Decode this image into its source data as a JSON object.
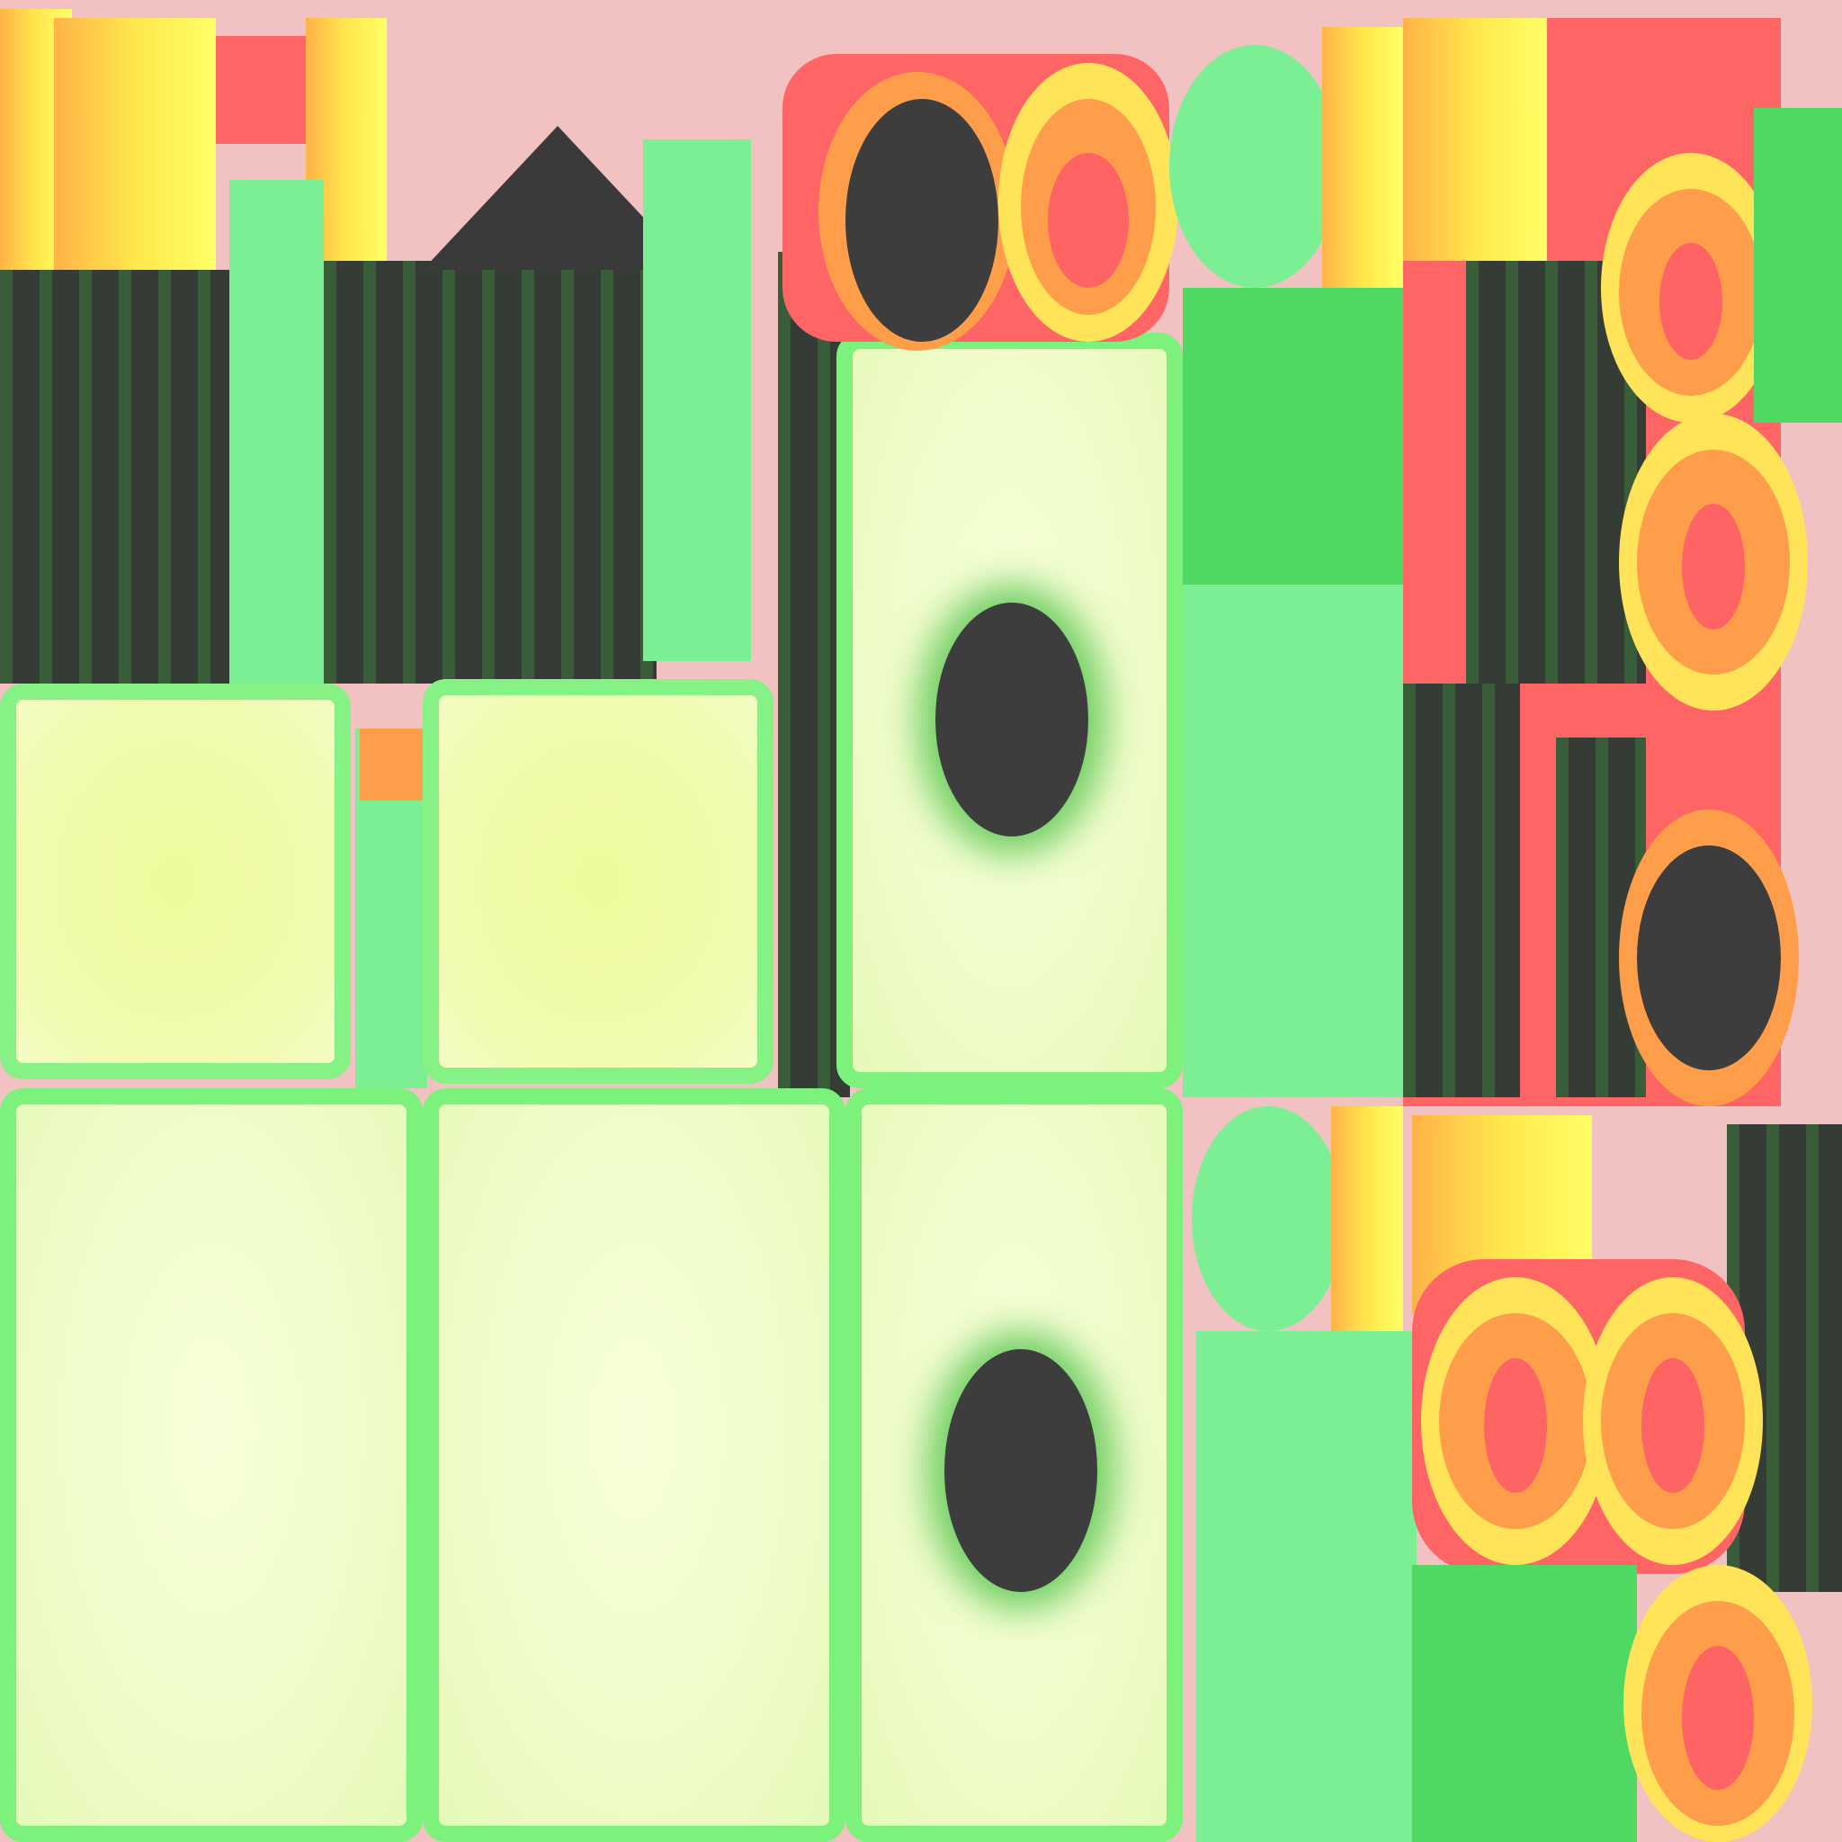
{
  "atlas": {
    "colors": {
      "pale": "#f1fbc9",
      "pale_yellow": "#eefb9b",
      "mint": "#7cef94",
      "green": "#4fd862",
      "dark": "#353b35",
      "red": "#ff6565",
      "orange": "#ff9e4a",
      "yellow": "#ffe45a",
      "pink": "#f2c2c2"
    }
  }
}
